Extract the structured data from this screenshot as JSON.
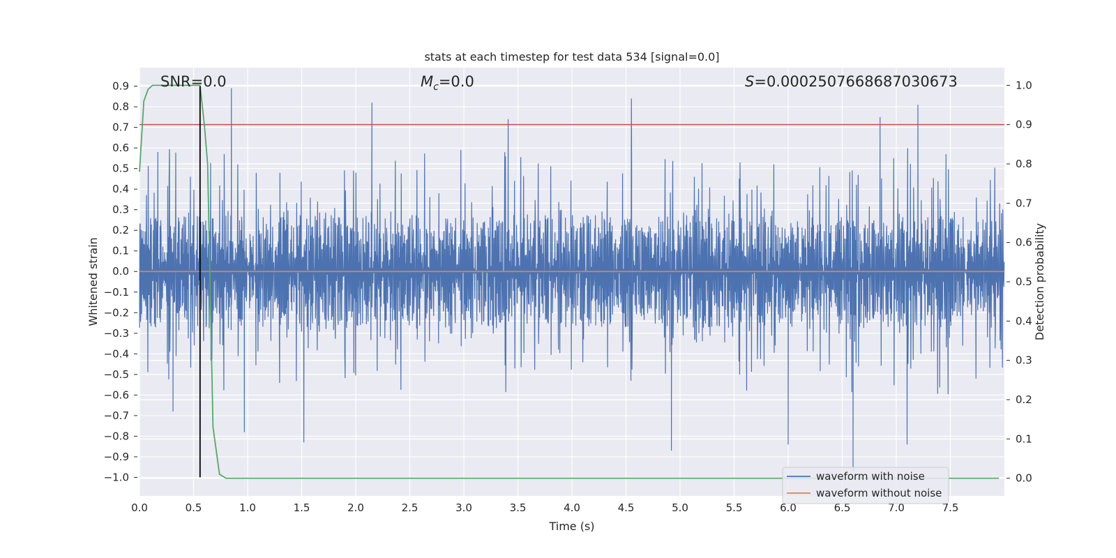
{
  "chart_data": {
    "type": "line",
    "title": "stats at each timestep for test data 534 [signal=0.0]",
    "xlabel": "Time (s)",
    "ylabel_left": "Whitened strain",
    "ylabel_right": "Detection probability",
    "xlim": [
      0.0,
      8.0
    ],
    "ylim_left": [
      -1.09,
      0.99
    ],
    "ylim_right": [
      -0.045,
      1.045
    ],
    "x_ticks": [
      "0.0",
      "0.5",
      "1.0",
      "1.5",
      "2.0",
      "2.5",
      "3.0",
      "3.5",
      "4.0",
      "4.5",
      "5.0",
      "5.5",
      "6.0",
      "6.5",
      "7.0",
      "7.5"
    ],
    "y_left_ticks": [
      "0.9",
      "0.8",
      "0.7",
      "0.6",
      "0.5",
      "0.4",
      "0.3",
      "0.2",
      "0.1",
      "0.0",
      "−0.1",
      "−0.2",
      "−0.3",
      "−0.4",
      "−0.5",
      "−0.6",
      "−0.7",
      "−0.8",
      "−0.9",
      "−1.0"
    ],
    "y_right_ticks": [
      "1.0",
      "0.9",
      "0.8",
      "0.7",
      "0.6",
      "0.5",
      "0.4",
      "0.3",
      "0.2",
      "0.1",
      "0.0"
    ],
    "annotations": {
      "snr": "SNR=0.0",
      "mc_symbol": "M",
      "mc_sub": "c",
      "mc_value": "=0.0",
      "s_symbol": "S",
      "s_value": "=0.0002507668687030673"
    },
    "series": [
      {
        "name": "waveform with noise",
        "color": "#4c72b0",
        "axis": "left",
        "description_noise": "dense whitened noise, bulk roughly ±0.4, peaks ~0.89, troughs ~-0.97",
        "peaks": [
          [
            0.17,
            0.58
          ],
          [
            0.85,
            0.89
          ],
          [
            2.15,
            0.82
          ],
          [
            3.41,
            0.74
          ],
          [
            4.55,
            0.84
          ],
          [
            6.85,
            0.75
          ],
          [
            7.2,
            0.81
          ]
        ],
        "troughs": [
          [
            0.31,
            -0.68
          ],
          [
            0.97,
            -0.78
          ],
          [
            1.52,
            -0.83
          ],
          [
            4.92,
            -0.87
          ],
          [
            6.0,
            -0.84
          ],
          [
            6.6,
            -0.97
          ],
          [
            7.1,
            -0.84
          ]
        ]
      },
      {
        "name": "waveform without noise",
        "color": "#dd8452",
        "axis": "left",
        "x": [
          0.0,
          8.0
        ],
        "y": [
          0.0,
          0.0
        ]
      },
      {
        "name": "detection probability",
        "color": "#55a868",
        "axis": "right",
        "x": [
          0.0,
          0.04,
          0.08,
          0.12,
          0.2,
          0.3,
          0.4,
          0.5,
          0.56,
          0.6,
          0.63,
          0.68,
          0.74,
          0.8,
          1.0,
          2.0,
          3.0,
          4.0,
          5.0,
          6.0,
          7.0,
          7.95
        ],
        "y": [
          0.78,
          0.96,
          0.99,
          1.0,
          1.0,
          1.0,
          1.0,
          1.0,
          1.0,
          0.9,
          0.8,
          0.13,
          0.01,
          0.0,
          0.0,
          0.0,
          0.0,
          0.0,
          0.0,
          0.0,
          0.0,
          0.0
        ]
      }
    ],
    "threshold": {
      "value": 0.9,
      "axis": "right",
      "color": "#c44e52"
    },
    "marker_line": {
      "x": 0.56,
      "y_from": -1.0,
      "y_to": 0.9,
      "color": "#000000"
    },
    "legend": {
      "position": "lower-right",
      "entries": [
        "waveform with noise",
        "waveform without noise"
      ]
    }
  }
}
